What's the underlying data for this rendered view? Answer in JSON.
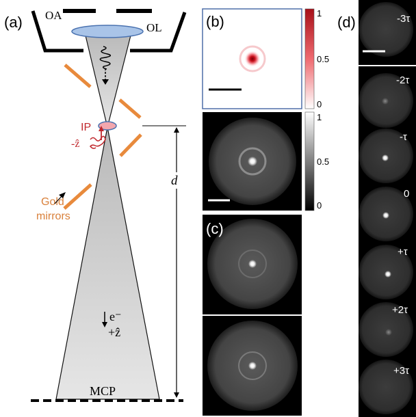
{
  "panel_a": {
    "label": "(a)",
    "aperture_label": "OA",
    "lens_label": "OL",
    "interaction_point_label": "IP",
    "laser_direction_label": "-ẑ",
    "mirrors_label_line1": "Gold",
    "mirrors_label_line2": "mirrors",
    "distance_label": "d",
    "electron_label": "e⁻",
    "electron_direction_label": "+ẑ",
    "detector_label": "MCP"
  },
  "panel_b": {
    "label": "(b)",
    "colorbar_top_ticks": [
      "1",
      "0.5",
      "0"
    ],
    "colorbar_bottom_ticks": [
      "1",
      "0.5",
      "0"
    ],
    "colors": {
      "frame": "#4f6ea8",
      "colormap_max": "#a80f18"
    }
  },
  "panel_c": {
    "label": "(c)"
  },
  "panel_d": {
    "label": "(d)",
    "delays": [
      "-3τ",
      "-2τ",
      "-τ",
      "0",
      "+τ",
      "+2τ",
      "+3τ"
    ]
  },
  "colors": {
    "mirror": "#e88a3c",
    "laser": "#c0282d",
    "ip_fill": "#f3a7ae",
    "lens_fill": "#a9c4e8",
    "lens_stroke": "#4a72b0",
    "mirror_label": "#d9803a"
  }
}
